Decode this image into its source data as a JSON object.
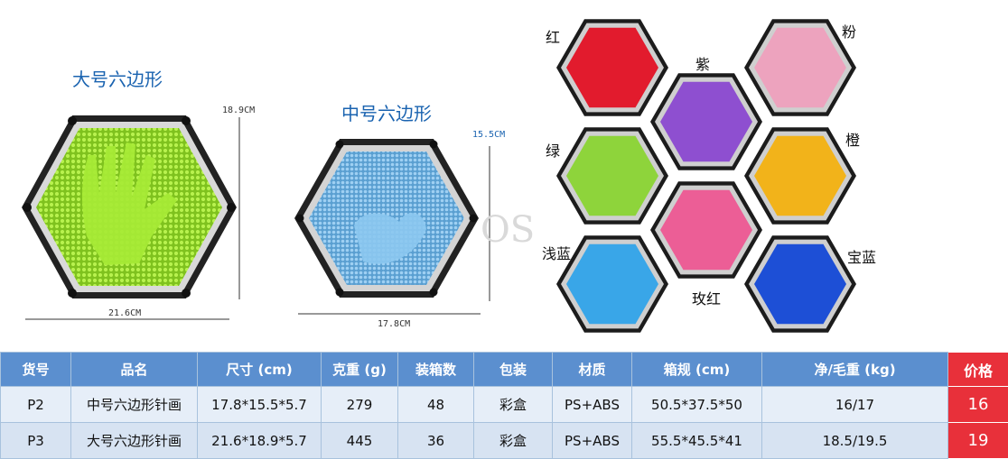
{
  "products": {
    "large": {
      "caption": "大号六边形",
      "width_label": "21.6CM",
      "height_label": "18.9CM"
    },
    "medium": {
      "caption": "中号六边形",
      "width_label": "17.8CM",
      "height_label": "15.5CM"
    }
  },
  "watermark": "OS",
  "colors_display": {
    "labels": {
      "red": "红",
      "purple": "紫",
      "pink": "粉",
      "green": "绿",
      "orange": "橙",
      "light_blue": "浅蓝",
      "rose": "玫红",
      "royal_blue": "宝蓝"
    },
    "pin_colors": {
      "red": "#e21b2d",
      "purple": "#8e4fd0",
      "pink": "#eda3be",
      "green": "#8ed43b",
      "orange": "#f2b31a",
      "light_blue": "#39a6e8",
      "rose": "#ec5e96",
      "royal_blue": "#1d4fd6"
    }
  },
  "table": {
    "headers": [
      "货号",
      "品名",
      "尺寸 (cm)",
      "克重 (g)",
      "装箱数",
      "包装",
      "材质",
      "箱规 (cm)",
      "净/毛重 (kg)",
      "价格"
    ],
    "rows": [
      [
        "P2",
        "中号六边形针画",
        "17.8*15.5*5.7",
        "279",
        "48",
        "彩盒",
        "PS+ABS",
        "50.5*37.5*50",
        "16/17",
        "16"
      ],
      [
        "P3",
        "大号六边形针画",
        "21.6*18.9*5.7",
        "445",
        "36",
        "彩盒",
        "PS+ABS",
        "55.5*45.5*41",
        "18.5/19.5",
        "19"
      ]
    ],
    "colors": {
      "header_bg": "#5b8fcf",
      "price_bg": "#e8303a"
    }
  }
}
